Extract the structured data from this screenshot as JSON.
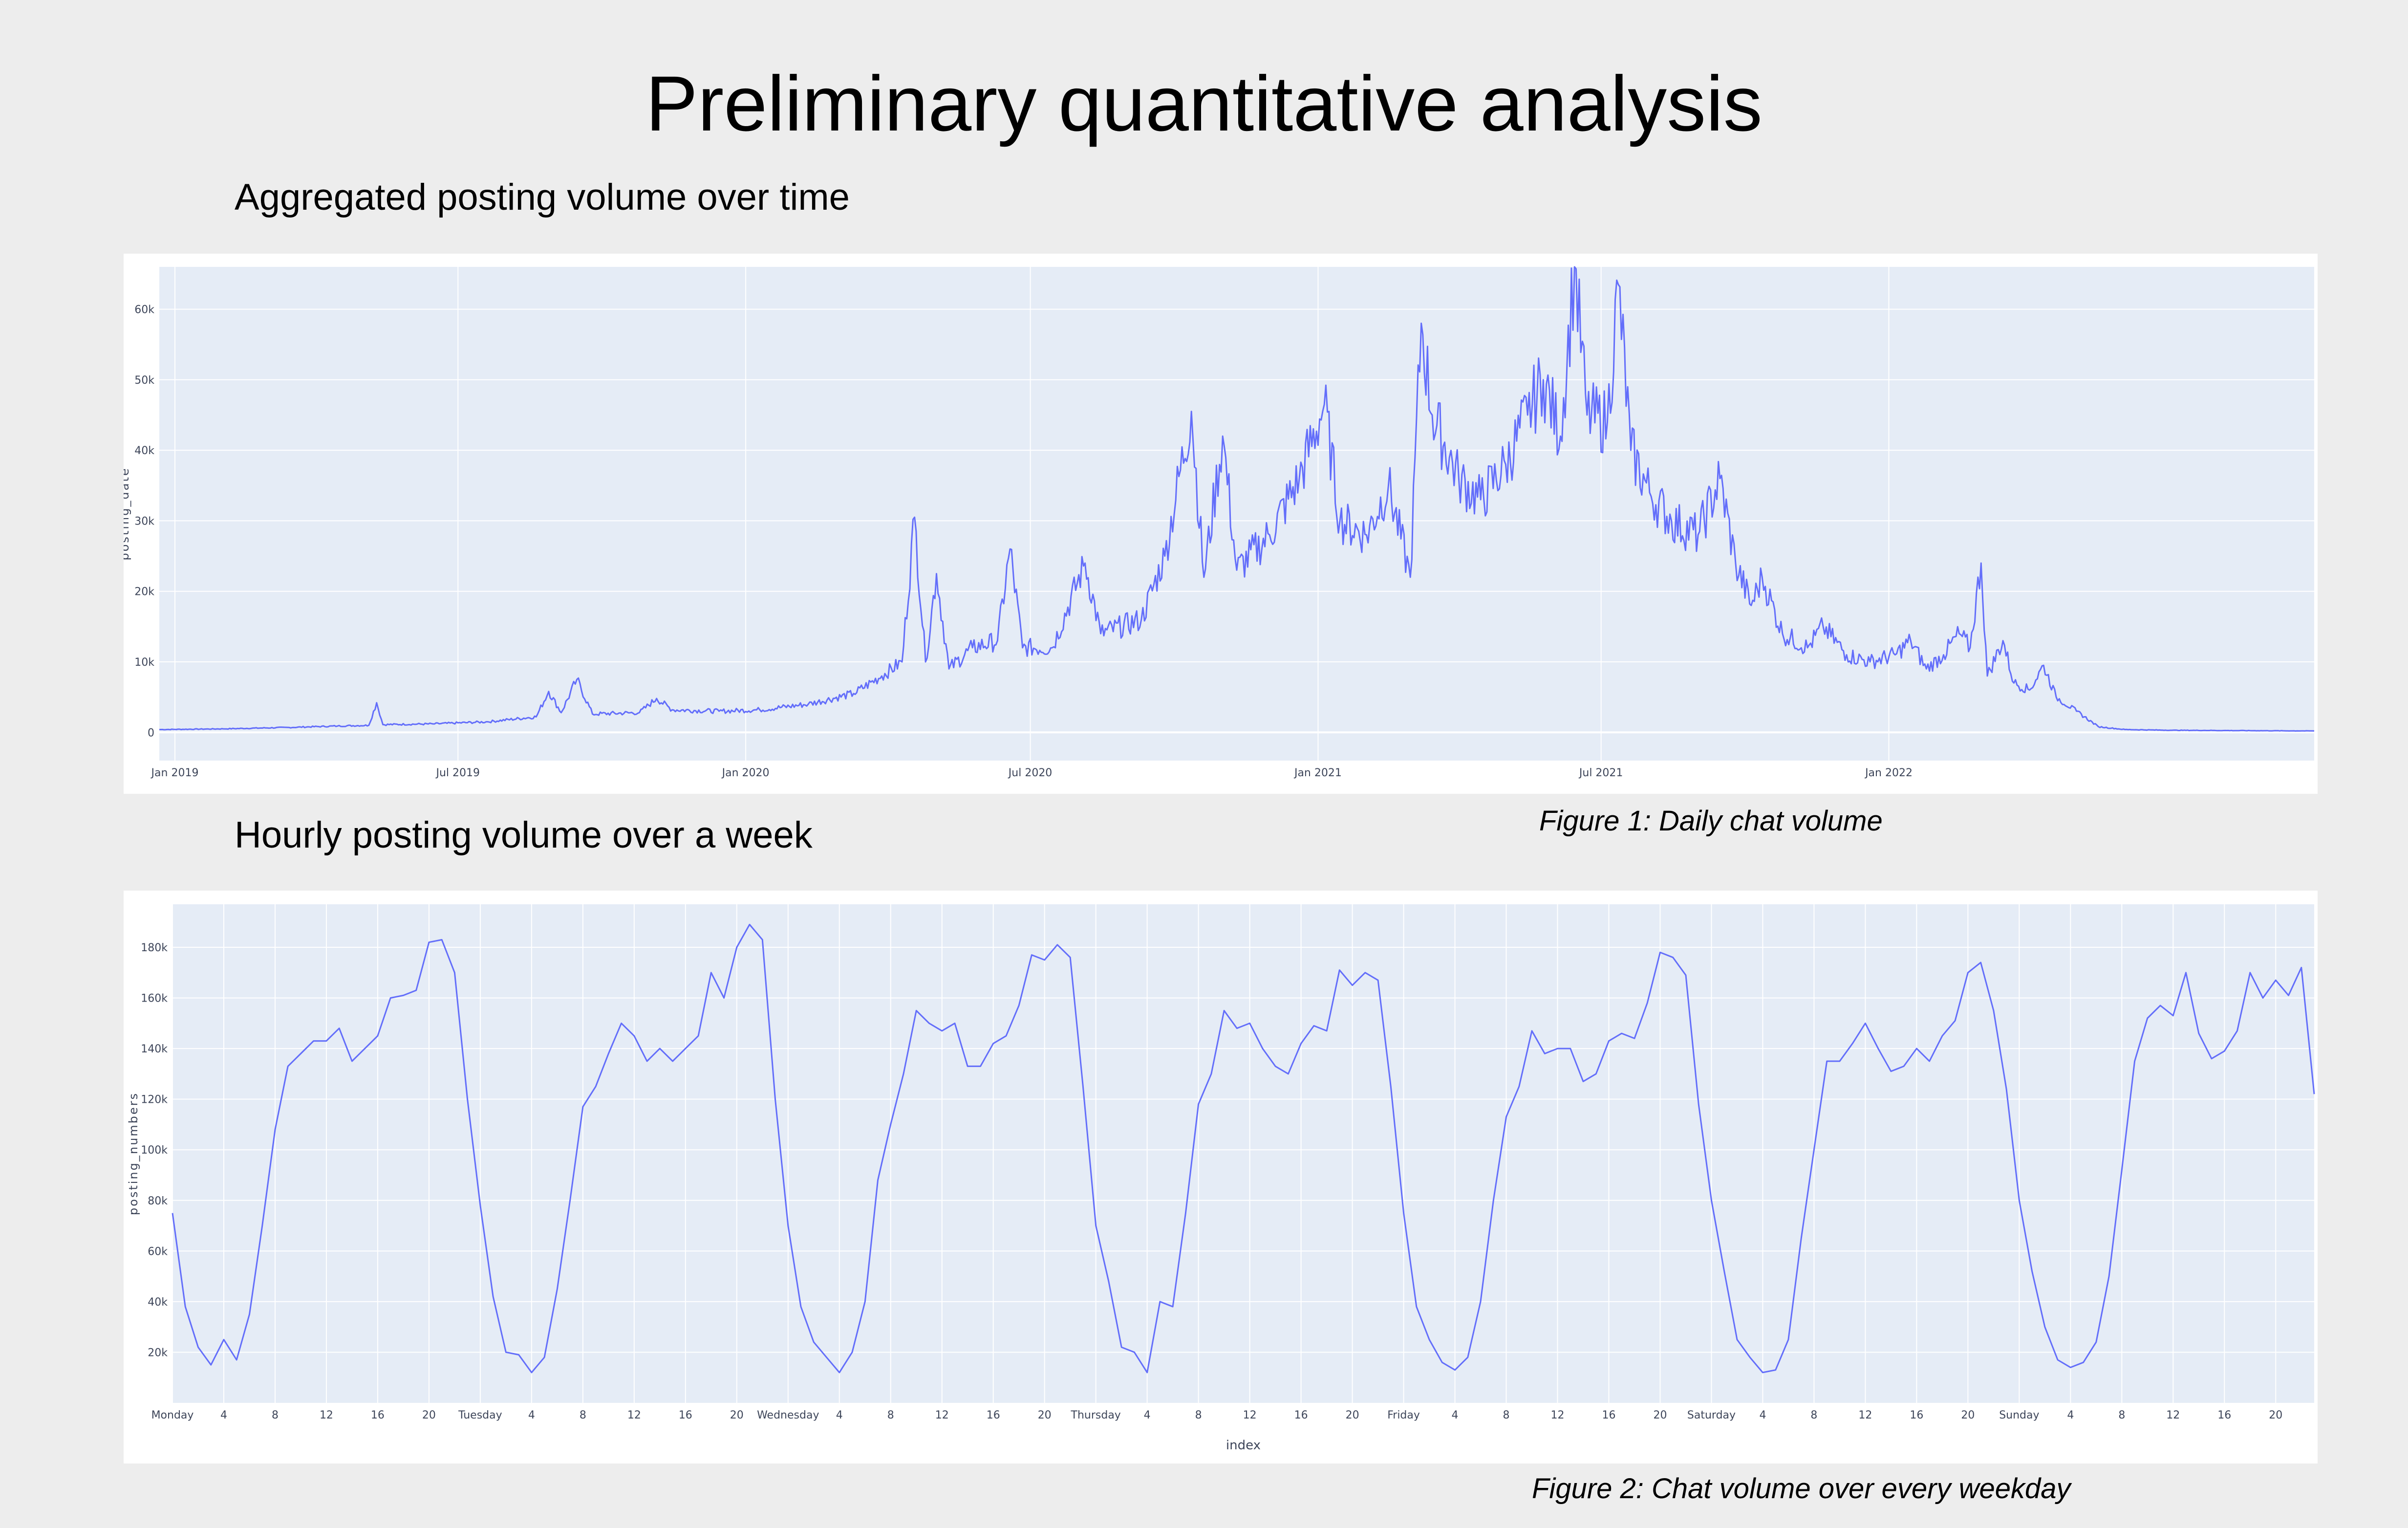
{
  "page": {
    "title": "Preliminary quantitative analysis",
    "section1_heading": "Aggregated posting volume over time",
    "section2_heading": "Hourly posting volume over a week",
    "figure1_caption": "Figure 1: Daily chat volume",
    "figure2_caption": "Figure 2: Chat volume over every weekday"
  },
  "colors": {
    "line": "#636efa",
    "plot_bg": "#e5ecf6",
    "grid": "#ffffff",
    "page_bg": "#ededed"
  },
  "chart_data": [
    {
      "type": "line",
      "ylabel": "posting_date",
      "xlabel": "",
      "x_range": [
        "2018-12-22",
        "2022-09-30"
      ],
      "ylim": [
        -4000,
        66000
      ],
      "y_ticks": [
        0,
        10000,
        20000,
        30000,
        40000,
        50000,
        60000
      ],
      "y_tick_labels": [
        "0",
        "10k",
        "20k",
        "30k",
        "40k",
        "50k",
        "60k"
      ],
      "x_ticks": [
        "2019-01-01",
        "2019-07-01",
        "2020-01-01",
        "2020-07-01",
        "2021-01-01",
        "2021-07-01",
        "2022-01-01"
      ],
      "x_tick_labels": [
        "Jan 2019",
        "Jul 2019",
        "Jan 2020",
        "Jul 2020",
        "Jan 2021",
        "Jul 2021",
        "Jan 2022"
      ],
      "series": [
        {
          "points": [
            [
              "2018-12-22",
              400
            ],
            [
              "2019-02-01",
              500
            ],
            [
              "2019-03-15",
              700
            ],
            [
              "2019-04-15",
              900
            ],
            [
              "2019-05-05",
              1000
            ],
            [
              "2019-05-10",
              4200
            ],
            [
              "2019-05-14",
              1100
            ],
            [
              "2019-06-15",
              1200
            ],
            [
              "2019-07-20",
              1500
            ],
            [
              "2019-08-20",
              2200
            ],
            [
              "2019-08-28",
              5800
            ],
            [
              "2019-09-05",
              2800
            ],
            [
              "2019-09-15",
              7500
            ],
            [
              "2019-09-25",
              2600
            ],
            [
              "2019-10-25",
              2800
            ],
            [
              "2019-11-05",
              4800
            ],
            [
              "2019-11-15",
              3200
            ],
            [
              "2019-12-15",
              3000
            ],
            [
              "2020-01-10",
              3200
            ],
            [
              "2020-02-10",
              4000
            ],
            [
              "2020-03-10",
              5500
            ],
            [
              "2020-03-28",
              8000
            ],
            [
              "2020-04-10",
              10000
            ],
            [
              "2020-04-18",
              30500
            ],
            [
              "2020-04-25",
              10000
            ],
            [
              "2020-05-02",
              22500
            ],
            [
              "2020-05-10",
              9000
            ],
            [
              "2020-05-25",
              12000
            ],
            [
              "2020-06-10",
              13000
            ],
            [
              "2020-06-18",
              26000
            ],
            [
              "2020-06-26",
              12000
            ],
            [
              "2020-07-15",
              12000
            ],
            [
              "2020-08-05",
              24000
            ],
            [
              "2020-08-15",
              14000
            ],
            [
              "2020-09-10",
              16000
            ],
            [
              "2020-09-25",
              25000
            ],
            [
              "2020-10-12",
              45500
            ],
            [
              "2020-10-20",
              22000
            ],
            [
              "2020-11-01",
              42000
            ],
            [
              "2020-11-10",
              23000
            ],
            [
              "2020-12-01",
              28000
            ],
            [
              "2020-12-20",
              36000
            ],
            [
              "2021-01-05",
              46500
            ],
            [
              "2021-01-15",
              30000
            ],
            [
              "2021-02-01",
              28000
            ],
            [
              "2021-02-15",
              35000
            ],
            [
              "2021-03-01",
              22000
            ],
            [
              "2021-03-08",
              58000
            ],
            [
              "2021-03-15",
              45000
            ],
            [
              "2021-04-01",
              36000
            ],
            [
              "2021-04-15",
              33000
            ],
            [
              "2021-05-01",
              38000
            ],
            [
              "2021-05-15",
              45000
            ],
            [
              "2021-05-25",
              50000
            ],
            [
              "2021-06-05",
              42000
            ],
            [
              "2021-06-14",
              66000
            ],
            [
              "2021-06-22",
              45000
            ],
            [
              "2021-07-05",
              44000
            ],
            [
              "2021-07-12",
              63500
            ],
            [
              "2021-07-20",
              40000
            ],
            [
              "2021-08-01",
              34000
            ],
            [
              "2021-08-15",
              30000
            ],
            [
              "2021-09-01",
              28000
            ],
            [
              "2021-09-15",
              36000
            ],
            [
              "2021-09-25",
              24000
            ],
            [
              "2021-10-05",
              18000
            ],
            [
              "2021-10-12",
              22000
            ],
            [
              "2021-10-25",
              14000
            ],
            [
              "2021-11-10",
              12000
            ],
            [
              "2021-11-20",
              15000
            ],
            [
              "2021-12-05",
              11000
            ],
            [
              "2021-12-20",
              10000
            ],
            [
              "2022-01-05",
              11000
            ],
            [
              "2022-01-15",
              13000
            ],
            [
              "2022-01-25",
              9000
            ],
            [
              "2022-02-05",
              11000
            ],
            [
              "2022-02-15",
              14000
            ],
            [
              "2022-02-22",
              12000
            ],
            [
              "2022-03-01",
              24000
            ],
            [
              "2022-03-05",
              8000
            ],
            [
              "2022-03-15",
              13000
            ],
            [
              "2022-03-22",
              7000
            ],
            [
              "2022-04-01",
              6000
            ],
            [
              "2022-04-10",
              9500
            ],
            [
              "2022-04-18",
              5000
            ],
            [
              "2022-05-01",
              3000
            ],
            [
              "2022-05-15",
              800
            ],
            [
              "2022-06-01",
              400
            ],
            [
              "2022-07-01",
              300
            ],
            [
              "2022-09-30",
              200
            ]
          ]
        }
      ]
    },
    {
      "type": "line",
      "xlabel": "index",
      "ylabel": "posting_numbers",
      "ylim": [
        0,
        197000
      ],
      "y_ticks": [
        20000,
        40000,
        60000,
        80000,
        100000,
        120000,
        140000,
        160000,
        180000
      ],
      "y_tick_labels": [
        "20k",
        "40k",
        "60k",
        "80k",
        "100k",
        "120k",
        "140k",
        "160k",
        "180k"
      ],
      "x_ticks": [
        0,
        4,
        8,
        12,
        16,
        20,
        24,
        28,
        32,
        36,
        40,
        44,
        48,
        52,
        56,
        60,
        64,
        68,
        72,
        76,
        80,
        84,
        88,
        92,
        96,
        100,
        104,
        108,
        112,
        116,
        120,
        124,
        128,
        132,
        136,
        140,
        144,
        148,
        152,
        156,
        160,
        164
      ],
      "x_tick_labels": [
        "Monday",
        "4",
        "8",
        "12",
        "16",
        "20",
        "Tuesday",
        "4",
        "8",
        "12",
        "16",
        "20",
        "Wednesday",
        "4",
        "8",
        "12",
        "16",
        "20",
        "Thursday",
        "4",
        "8",
        "12",
        "16",
        "20",
        "Friday",
        "4",
        "8",
        "12",
        "16",
        "20",
        "Saturday",
        "4",
        "8",
        "12",
        "16",
        "20",
        "Sunday",
        "4",
        "8",
        "12",
        "16",
        "20"
      ],
      "x_range": [
        0,
        167
      ],
      "series": [
        {
          "values": [
            75000,
            38000,
            22000,
            15000,
            25000,
            17000,
            35000,
            70000,
            108000,
            133000,
            138000,
            143000,
            143000,
            148000,
            135000,
            140000,
            145000,
            160000,
            161000,
            163000,
            182000,
            183000,
            170000,
            120000,
            78000,
            42000,
            20000,
            19000,
            12000,
            18000,
            45000,
            80000,
            117000,
            125000,
            138000,
            150000,
            145000,
            135000,
            140000,
            135000,
            140000,
            145000,
            170000,
            160000,
            180000,
            189000,
            183000,
            120000,
            70000,
            38000,
            24000,
            18000,
            12000,
            20000,
            40000,
            88000,
            110000,
            130000,
            155000,
            150000,
            147000,
            150000,
            133000,
            133000,
            142000,
            145000,
            157000,
            177000,
            175000,
            181000,
            176000,
            125000,
            70000,
            48000,
            22000,
            20000,
            12000,
            40000,
            38000,
            75000,
            118000,
            130000,
            155000,
            148000,
            150000,
            140000,
            133000,
            130000,
            142000,
            149000,
            147000,
            171000,
            165000,
            170000,
            167000,
            125000,
            75000,
            38000,
            25000,
            16000,
            13000,
            18000,
            40000,
            80000,
            113000,
            125000,
            147000,
            138000,
            140000,
            140000,
            127000,
            130000,
            143000,
            146000,
            144000,
            158000,
            178000,
            176000,
            169000,
            118000,
            80000,
            52000,
            25000,
            18000,
            12000,
            13000,
            25000,
            65000,
            100000,
            135000,
            135000,
            142000,
            150000,
            140000,
            131000,
            133000,
            140000,
            135000,
            145000,
            151000,
            170000,
            174000,
            155000,
            124000,
            80000,
            52000,
            30000,
            17000,
            14000,
            16000,
            24000,
            50000,
            92000,
            135000,
            152000,
            157000,
            153000,
            170000,
            146000,
            136000,
            139000,
            147000,
            170000,
            160000,
            167000,
            161000,
            172000,
            122000
          ]
        }
      ]
    }
  ]
}
